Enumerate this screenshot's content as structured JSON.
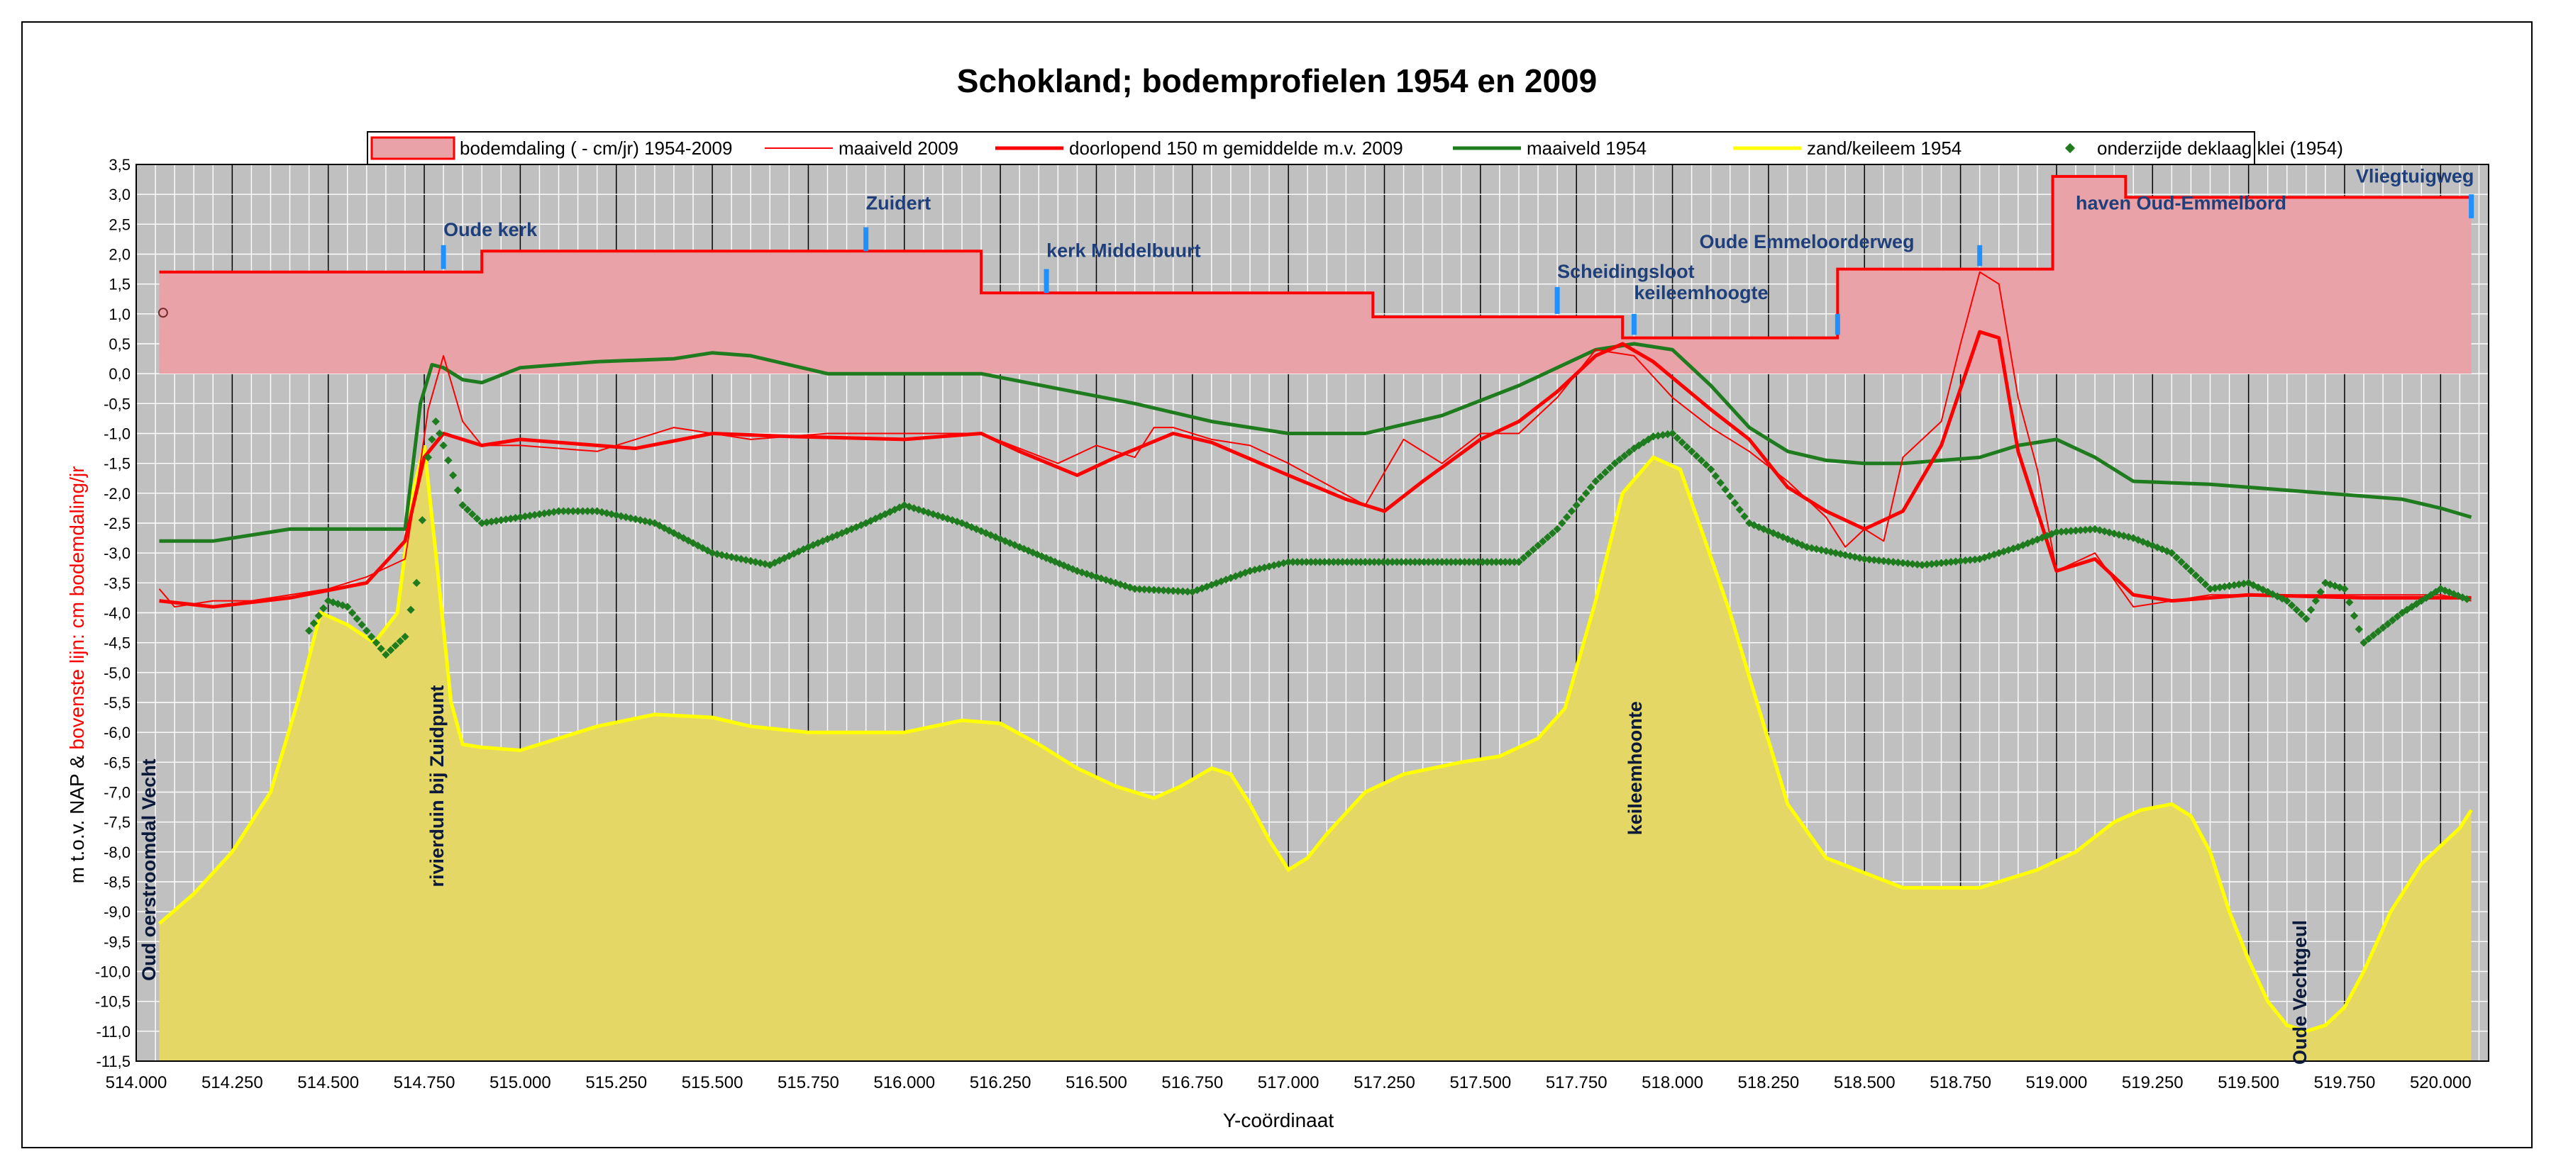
{
  "chart_data": {
    "type": "line",
    "title": "Schokland; bodemprofielen 1954 en 2009",
    "xlabel": "Y-coördinaat",
    "ylabel": "m t.o.v. NAP & bovenste lijn: cm bodemdaling/jr",
    "ylabel_parts": [
      "m t.o.v. NAP & ",
      "bovenste lijn: cm bodemdaling/jr"
    ],
    "xlim": [
      514.0,
      520.125
    ],
    "ylim": [
      -11.5,
      3.5
    ],
    "grid": true,
    "legend_position": "top",
    "plot_background": "#c0c0c0",
    "x_ticks": [
      "514.000",
      "514.250",
      "514.500",
      "514.750",
      "515.000",
      "515.250",
      "515.500",
      "515.750",
      "516.000",
      "516.250",
      "516.500",
      "516.750",
      "517.000",
      "517.250",
      "517.500",
      "517.750",
      "518.000",
      "518.250",
      "518.500",
      "518.750",
      "519.000",
      "519.250",
      "519.500",
      "519.750",
      "520.000"
    ],
    "y_ticks": [
      "3,5",
      "3,0",
      "2,5",
      "2,0",
      "1,5",
      "1,0",
      "0,5",
      "0,0",
      "-0,5",
      "-1,0",
      "-1,5",
      "-2,0",
      "-2,5",
      "-3,0",
      "-3,5",
      "-4,0",
      "-4,5",
      "-5,0",
      "-5,5",
      "-6,0",
      "-6,5",
      "-7,0",
      "-7,5",
      "-8,0",
      "-8,5",
      "-9,0",
      "-9,5",
      "-10,0",
      "-10,5",
      "-11,0",
      "-11,5"
    ],
    "series": [
      {
        "name": "bodemdaling ( - cm/jr) 1954-2009",
        "kind": "area-step",
        "color": "#ff0000",
        "fill": "#e8a2a8",
        "x": [
          514.06,
          514.78,
          514.78,
          514.9,
          514.9,
          516.2,
          516.2,
          517.22,
          517.22,
          517.87,
          517.87,
          518.43,
          518.43,
          518.99,
          518.99,
          519.18,
          519.18,
          520.08
        ],
        "y": [
          1.7,
          1.7,
          1.7,
          1.7,
          2.05,
          2.05,
          1.35,
          1.35,
          0.95,
          0.95,
          0.6,
          0.6,
          1.75,
          1.75,
          3.3,
          3.3,
          2.95,
          2.95
        ]
      },
      {
        "name": "maaiveld 2009",
        "kind": "line",
        "color": "#ff0000",
        "width": 2,
        "x": [
          514.06,
          514.1,
          514.2,
          514.3,
          514.4,
          514.5,
          514.6,
          514.7,
          514.74,
          514.76,
          514.8,
          514.85,
          514.9,
          515.0,
          515.2,
          515.4,
          515.6,
          515.8,
          516.0,
          516.2,
          516.4,
          516.5,
          516.6,
          516.65,
          516.7,
          516.8,
          516.9,
          517.0,
          517.2,
          517.3,
          517.4,
          517.5,
          517.6,
          517.7,
          517.8,
          517.9,
          518.0,
          518.1,
          518.2,
          518.3,
          518.4,
          518.45,
          518.5,
          518.55,
          518.6,
          518.7,
          518.75,
          518.8,
          518.85,
          518.9,
          518.95,
          519.0,
          519.1,
          519.2,
          519.4,
          519.6,
          519.8,
          520.0,
          520.08
        ],
        "y": [
          -3.6,
          -3.9,
          -3.8,
          -3.8,
          -3.7,
          -3.6,
          -3.4,
          -3.1,
          -1.5,
          -0.6,
          0.3,
          -0.8,
          -1.2,
          -1.2,
          -1.3,
          -0.9,
          -1.1,
          -1.0,
          -1.0,
          -1.0,
          -1.5,
          -1.2,
          -1.4,
          -0.9,
          -0.9,
          -1.1,
          -1.2,
          -1.5,
          -2.2,
          -1.1,
          -1.5,
          -1.0,
          -1.0,
          -0.4,
          0.4,
          0.3,
          -0.4,
          -0.9,
          -1.3,
          -1.8,
          -2.4,
          -2.9,
          -2.6,
          -2.8,
          -1.4,
          -0.8,
          0.5,
          1.7,
          1.5,
          -0.4,
          -1.6,
          -3.3,
          -3.0,
          -3.9,
          -3.7,
          -3.7,
          -3.7,
          -3.7,
          -3.8
        ]
      },
      {
        "name": "doorlopend 150 m gemiddelde m.v. 2009",
        "kind": "line",
        "color": "#ff0000",
        "width": 5,
        "x": [
          514.06,
          514.2,
          514.4,
          514.6,
          514.7,
          514.75,
          514.8,
          514.9,
          515.0,
          515.2,
          515.3,
          515.5,
          515.7,
          516.0,
          516.2,
          516.3,
          516.45,
          516.55,
          516.7,
          516.8,
          517.0,
          517.15,
          517.25,
          517.35,
          517.5,
          517.6,
          517.7,
          517.8,
          517.87,
          517.95,
          518.1,
          518.2,
          518.3,
          518.4,
          518.5,
          518.6,
          518.7,
          518.8,
          518.85,
          518.9,
          518.95,
          519.0,
          519.1,
          519.2,
          519.3,
          519.5,
          519.8,
          520.08
        ],
        "y": [
          -3.8,
          -3.9,
          -3.75,
          -3.5,
          -2.8,
          -1.4,
          -1.0,
          -1.2,
          -1.1,
          -1.2,
          -1.25,
          -1.0,
          -1.05,
          -1.1,
          -1.0,
          -1.3,
          -1.7,
          -1.4,
          -1.0,
          -1.15,
          -1.7,
          -2.1,
          -2.3,
          -1.8,
          -1.1,
          -0.8,
          -0.3,
          0.3,
          0.5,
          0.2,
          -0.6,
          -1.1,
          -1.9,
          -2.3,
          -2.6,
          -2.3,
          -1.2,
          0.7,
          0.6,
          -1.3,
          -2.3,
          -3.3,
          -3.1,
          -3.7,
          -3.8,
          -3.7,
          -3.75,
          -3.75
        ]
      },
      {
        "name": "maaiveld 1954",
        "kind": "line",
        "color": "#1e7b1e",
        "width": 5,
        "x": [
          514.06,
          514.2,
          514.4,
          514.6,
          514.7,
          514.74,
          514.77,
          514.8,
          514.85,
          514.9,
          515.0,
          515.2,
          515.4,
          515.5,
          515.6,
          515.8,
          516.0,
          516.2,
          516.4,
          516.6,
          516.8,
          517.0,
          517.2,
          517.4,
          517.6,
          517.8,
          517.9,
          518.0,
          518.1,
          518.2,
          518.3,
          518.4,
          518.5,
          518.6,
          518.8,
          518.9,
          519.0,
          519.1,
          519.2,
          519.4,
          519.6,
          519.8,
          519.9,
          520.0,
          520.08
        ],
        "y": [
          -2.8,
          -2.8,
          -2.6,
          -2.6,
          -2.6,
          -0.5,
          0.15,
          0.1,
          -0.1,
          -0.15,
          0.1,
          0.2,
          0.25,
          0.35,
          0.3,
          0.0,
          0.0,
          0.0,
          -0.25,
          -0.5,
          -0.8,
          -1.0,
          -1.0,
          -0.7,
          -0.2,
          0.4,
          0.5,
          0.4,
          -0.2,
          -0.9,
          -1.3,
          -1.45,
          -1.5,
          -1.5,
          -1.4,
          -1.2,
          -1.1,
          -1.4,
          -1.8,
          -1.85,
          -1.95,
          -2.05,
          -2.1,
          -2.25,
          -2.4
        ]
      },
      {
        "name": "zand/keileem 1954",
        "kind": "area",
        "color": "#ffff00",
        "fill": "#e5d766",
        "x": [
          514.06,
          514.15,
          514.25,
          514.35,
          514.42,
          514.48,
          514.55,
          514.62,
          514.68,
          514.72,
          514.75,
          514.78,
          514.82,
          514.85,
          514.9,
          515.0,
          515.1,
          515.2,
          515.35,
          515.5,
          515.6,
          515.75,
          516.0,
          516.15,
          516.25,
          516.35,
          516.45,
          516.55,
          516.65,
          516.72,
          516.8,
          516.85,
          516.9,
          516.95,
          517.0,
          517.05,
          517.1,
          517.2,
          517.3,
          517.45,
          517.55,
          517.65,
          517.72,
          517.8,
          517.87,
          517.95,
          518.02,
          518.08,
          518.15,
          518.22,
          518.3,
          518.4,
          518.6,
          518.8,
          518.95,
          519.05,
          519.15,
          519.22,
          519.3,
          519.35,
          519.4,
          519.45,
          519.5,
          519.55,
          519.6,
          519.65,
          519.7,
          519.75,
          519.8,
          519.87,
          519.95,
          520.05,
          520.08
        ],
        "y": [
          -9.2,
          -8.7,
          -8.0,
          -7.0,
          -5.5,
          -4.0,
          -4.2,
          -4.5,
          -4.0,
          -2.0,
          -1.2,
          -3.0,
          -5.5,
          -6.2,
          -6.25,
          -6.3,
          -6.1,
          -5.9,
          -5.7,
          -5.75,
          -5.9,
          -6.0,
          -6.0,
          -5.8,
          -5.85,
          -6.2,
          -6.6,
          -6.9,
          -7.1,
          -6.9,
          -6.6,
          -6.7,
          -7.2,
          -7.8,
          -8.3,
          -8.1,
          -7.7,
          -7.0,
          -6.7,
          -6.5,
          -6.4,
          -6.1,
          -5.6,
          -3.8,
          -2.0,
          -1.4,
          -1.6,
          -2.7,
          -4.0,
          -5.5,
          -7.2,
          -8.1,
          -8.6,
          -8.6,
          -8.3,
          -8.0,
          -7.5,
          -7.3,
          -7.2,
          -7.4,
          -8.0,
          -9.0,
          -9.8,
          -10.5,
          -10.9,
          -11.0,
          -10.9,
          -10.6,
          -10.0,
          -9.0,
          -8.2,
          -7.6,
          -7.3
        ]
      },
      {
        "name": "onderzijde deklaag klei (1954)",
        "kind": "dots",
        "color": "#1e7b1e",
        "x": [
          514.45,
          514.5,
          514.55,
          514.6,
          514.65,
          514.7,
          514.73,
          514.76,
          514.78,
          514.8,
          514.85,
          514.9,
          515.0,
          515.1,
          515.2,
          515.35,
          515.5,
          515.65,
          515.75,
          515.9,
          516.0,
          516.15,
          516.3,
          516.45,
          516.6,
          516.75,
          516.9,
          517.0,
          517.2,
          517.4,
          517.6,
          517.7,
          517.8,
          517.85,
          517.9,
          517.95,
          518.0,
          518.1,
          518.2,
          518.35,
          518.5,
          518.65,
          518.8,
          518.9,
          519.0,
          519.1,
          519.2,
          519.3,
          519.4,
          519.5,
          519.6,
          519.65,
          519.7,
          519.75,
          519.8,
          519.9,
          520.0,
          520.08
        ],
        "y": [
          -4.3,
          -3.8,
          -3.9,
          -4.3,
          -4.7,
          -4.4,
          -3.5,
          -1.4,
          -0.8,
          -1.2,
          -2.2,
          -2.5,
          -2.4,
          -2.3,
          -2.3,
          -2.5,
          -3.0,
          -3.2,
          -2.9,
          -2.5,
          -2.2,
          -2.5,
          -2.9,
          -3.3,
          -3.6,
          -3.65,
          -3.3,
          -3.15,
          -3.15,
          -3.15,
          -3.15,
          -2.6,
          -1.8,
          -1.5,
          -1.25,
          -1.05,
          -1.0,
          -1.6,
          -2.5,
          -2.9,
          -3.1,
          -3.2,
          -3.1,
          -2.9,
          -2.65,
          -2.6,
          -2.75,
          -3.0,
          -3.6,
          -3.5,
          -3.8,
          -4.1,
          -3.5,
          -3.6,
          -4.5,
          -4.0,
          -3.6,
          -3.8
        ]
      }
    ],
    "annotations": [
      {
        "text": "Oude kerk",
        "x": 514.8,
        "y": 2.3,
        "marker_top": 2.15,
        "marker_bottom": 1.75
      },
      {
        "text": "Zuidert",
        "x": 515.9,
        "y": 2.75,
        "marker_top": 2.45,
        "marker_bottom": 2.05
      },
      {
        "text": "kerk Middelbuurt",
        "x": 516.37,
        "y": 1.95,
        "marker_top": 1.75,
        "marker_bottom": 1.35
      },
      {
        "text": "Scheidingsloot",
        "x": 517.7,
        "y": 1.6,
        "marker_top": 1.45,
        "marker_bottom": 1.0
      },
      {
        "text": "keileemhoogte",
        "x": 517.9,
        "y": 1.25,
        "marker_top": 1.0,
        "marker_bottom": 0.65
      },
      {
        "text": "Oude Emmeloorderweg",
        "x": 518.07,
        "y": 2.1,
        "marker_top": 1.0,
        "marker_bottom": 0.65,
        "marker_x": 518.43
      },
      {
        "text": "haven Oud-Emmelbord",
        "x": 519.05,
        "y": 2.75,
        "marker_top": 2.15,
        "marker_bottom": 1.8,
        "marker_x": 518.8
      },
      {
        "text": "Vliegtuigweg",
        "x": 519.95,
        "y": 3.2,
        "marker_top": 3.0,
        "marker_bottom": 2.6,
        "marker_x": 520.08
      }
    ],
    "vertical_labels": [
      {
        "text": "Oud oerstroomdal Vecht",
        "x": 514.05,
        "y": -8.3
      },
      {
        "text": "rivierduin bij Zuidpunt",
        "x": 514.8,
        "y": -6.9
      },
      {
        "text": "keileemhoonte",
        "x": 517.92,
        "y": -6.6
      },
      {
        "text": "Oude Vechtgeul",
        "x": 519.65,
        "y": -10.35
      }
    ]
  }
}
